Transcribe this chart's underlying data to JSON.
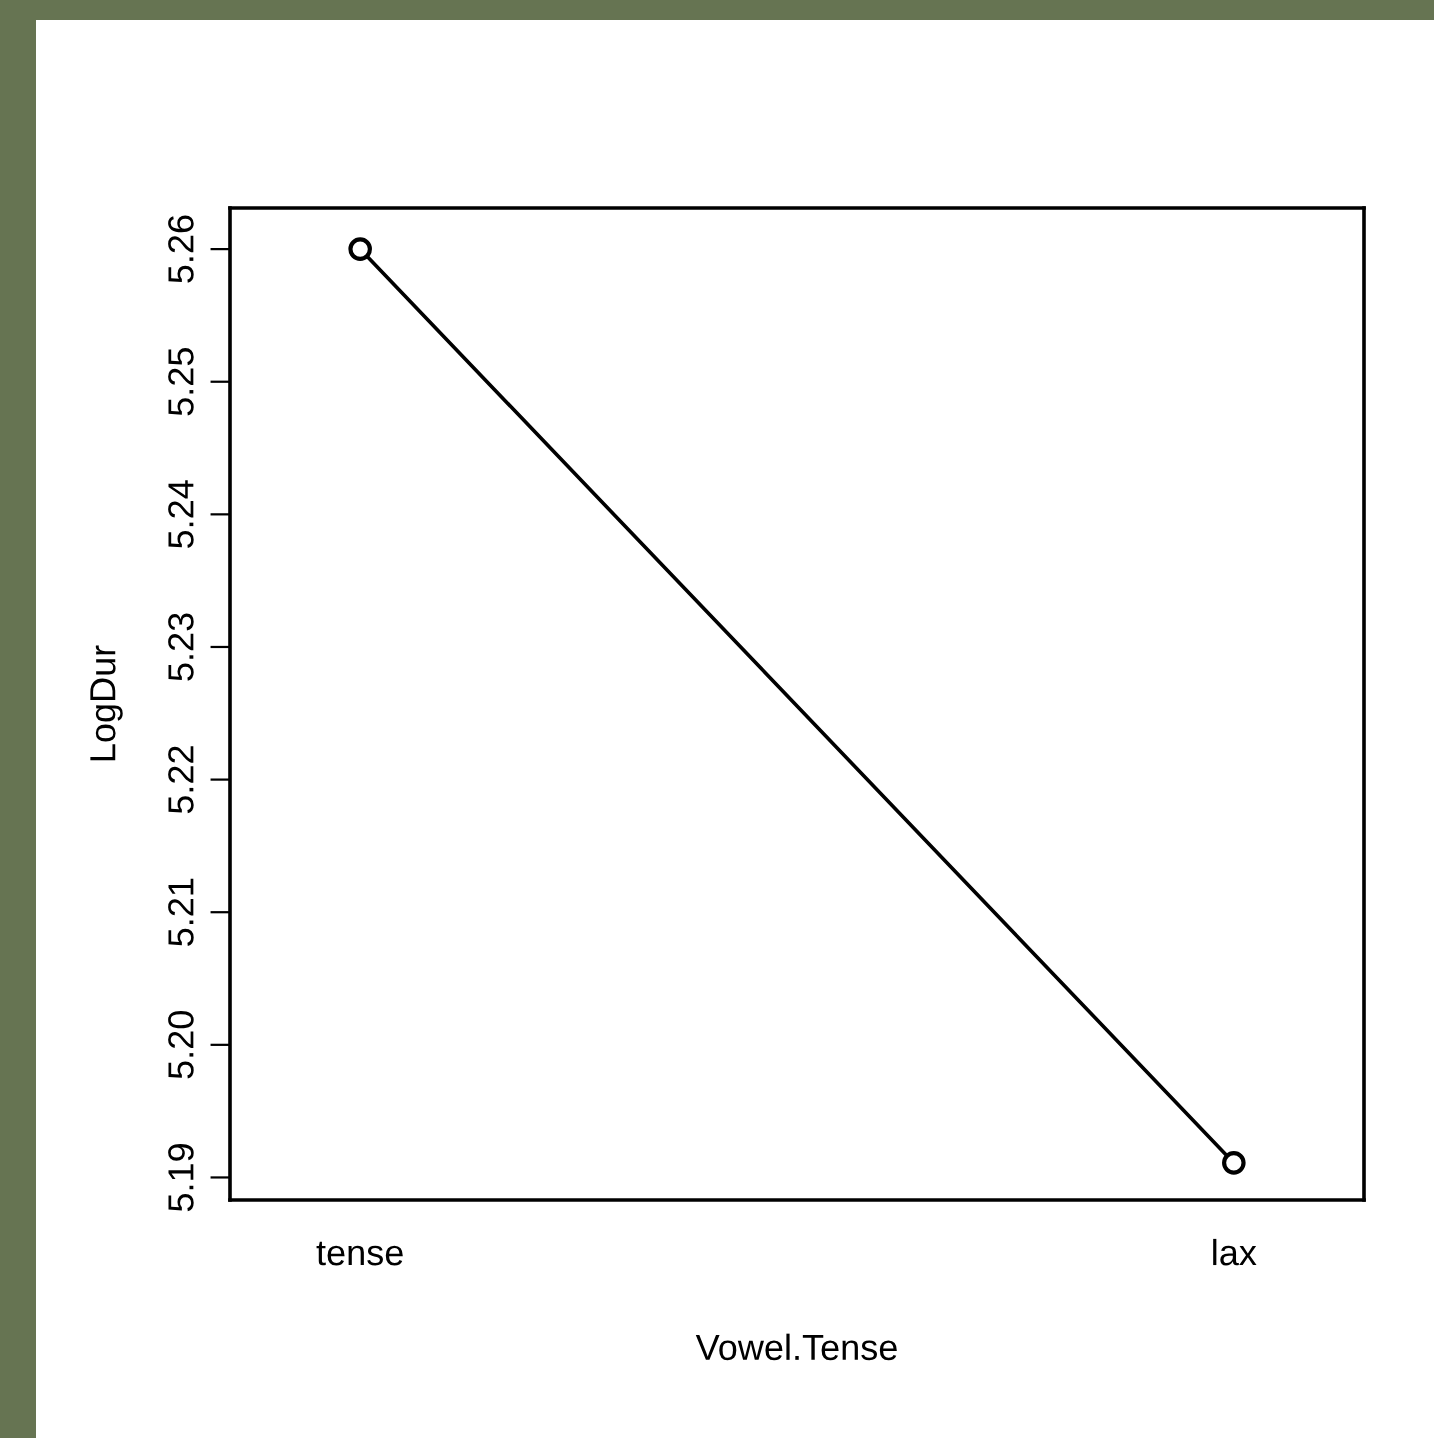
{
  "chart_data": {
    "type": "line",
    "xlabel": "Vowel.Tense",
    "ylabel": "LogDur",
    "categories": [
      "tense",
      "lax"
    ],
    "series": [
      {
        "color": "#000000",
        "values": [
          5.26,
          5.1911
        ]
      }
    ],
    "ylim": [
      5.1883,
      5.2631
    ],
    "yticks": [
      5.19,
      {
        "value": 5.2,
        "label": "5.20"
      },
      5.21,
      5.22,
      5.23,
      5.24,
      5.25,
      5.26
    ],
    "marker": "circle",
    "line_style": "solid",
    "grid": false,
    "legend": false
  }
}
